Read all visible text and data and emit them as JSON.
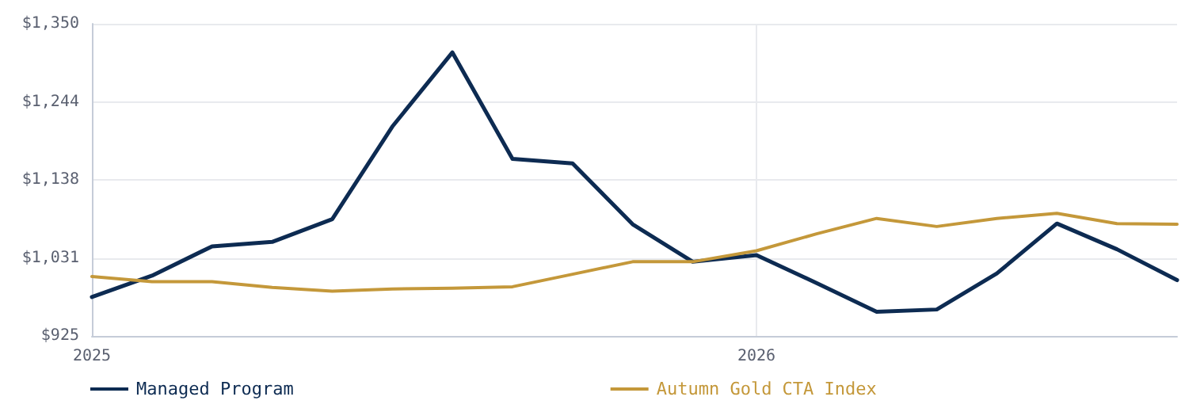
{
  "chart_data": {
    "type": "line",
    "x": [
      "2025-01-01",
      "2025-02-03",
      "2025-03-08",
      "2025-04-10",
      "2025-05-13",
      "2025-06-15",
      "2025-07-18",
      "2025-08-20",
      "2025-09-22",
      "2025-10-25",
      "2025-11-27",
      "2026-01-01",
      "2026-02-03",
      "2026-03-08",
      "2026-04-10",
      "2026-05-13",
      "2026-06-15",
      "2026-07-18",
      "2026-08-20"
    ],
    "series": [
      {
        "name": "Managed Program",
        "color": "#0d2b52",
        "values": [
          978,
          1007,
          1047,
          1053,
          1084,
          1210,
          1311,
          1166,
          1160,
          1077,
          1026,
          1035,
          997,
          958,
          961,
          1010,
          1078,
          1043,
          1001
        ]
      },
      {
        "name": "Autumn Gold CTA Index",
        "color": "#c4983a",
        "values": [
          1006,
          999,
          999,
          991,
          986,
          989,
          990,
          992,
          1009,
          1026,
          1026,
          1041,
          1064,
          1085,
          1074,
          1085,
          1092,
          1078,
          1077
        ]
      }
    ],
    "xlim": [
      "2025-01-01",
      "2026-08-20"
    ],
    "xticks": [
      "2025",
      "2026"
    ],
    "ylim": [
      925,
      1350
    ],
    "yticks": [
      {
        "value": 925,
        "label": "$925"
      },
      {
        "value": 1031.25,
        "label": "$1,031"
      },
      {
        "value": 1137.5,
        "label": "$1,138"
      },
      {
        "value": 1243.75,
        "label": "$1,244"
      },
      {
        "value": 1350,
        "label": "$1,350"
      }
    ],
    "grid": true,
    "legend": "bottom",
    "marker": "none",
    "line_style": "solid"
  }
}
